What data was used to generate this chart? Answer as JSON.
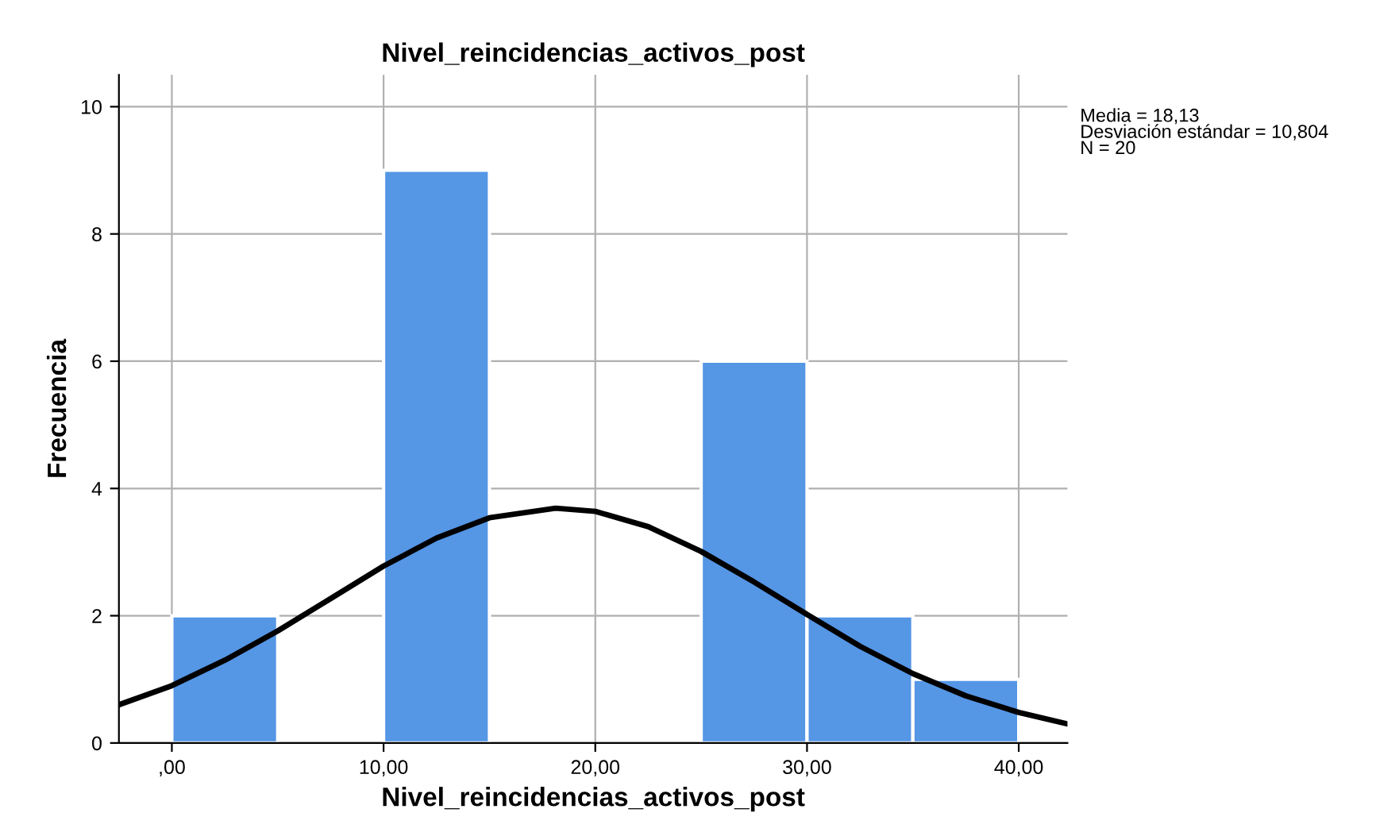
{
  "chart_data": {
    "type": "histogram",
    "title": "Nivel_reincidencias_activos_post",
    "xlabel": "Nivel_reincidencias_activos_post",
    "ylabel": "Frecuencia",
    "bins": [
      0,
      5,
      10,
      15,
      20,
      25,
      30,
      35,
      40
    ],
    "values": [
      2,
      0,
      9,
      0,
      0,
      6,
      2,
      1
    ],
    "color": "#5596e5",
    "series": [
      {
        "type": "line",
        "color": "#000000",
        "x": [
          -2.5,
          0,
          2.5,
          5,
          7.5,
          10,
          12.5,
          15,
          18.13,
          20,
          22.5,
          25,
          27.5,
          30,
          32.5,
          35,
          37.5,
          40,
          42.3
        ],
        "values": [
          0.6,
          0.9,
          1.3,
          1.76,
          2.27,
          2.78,
          3.22,
          3.54,
          3.69,
          3.64,
          3.4,
          3.01,
          2.53,
          2.02,
          1.52,
          1.09,
          0.74,
          0.48,
          0.3
        ]
      }
    ],
    "xlim": [
      -2.5,
      42.3
    ],
    "ylim": [
      0,
      10.5
    ],
    "xticks": [
      {
        "value": 0,
        "label": ",00"
      },
      {
        "value": 10,
        "label": "10,00"
      },
      {
        "value": 20,
        "label": "20,00"
      },
      {
        "value": 30,
        "label": "30,00"
      },
      {
        "value": 40,
        "label": "40,00"
      }
    ],
    "yticks": [
      0,
      2,
      4,
      6,
      8,
      10
    ],
    "grid": true,
    "annotations": [
      "Media = 18,13\nDesviación estándar = 10,804\nN = 20"
    ]
  }
}
